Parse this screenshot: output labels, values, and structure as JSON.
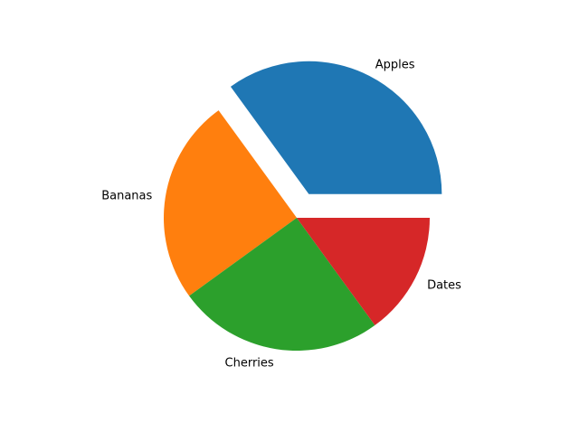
{
  "chart_data": {
    "type": "pie",
    "categories": [
      "Apples",
      "Bananas",
      "Cherries",
      "Dates"
    ],
    "values": [
      35,
      25,
      25,
      15
    ],
    "colors": [
      "#1f77b4",
      "#ff7f0e",
      "#2ca02c",
      "#d62728"
    ],
    "explode": [
      0.2,
      0,
      0,
      0
    ],
    "start_angle": 0,
    "direction": "counterclockwise"
  }
}
